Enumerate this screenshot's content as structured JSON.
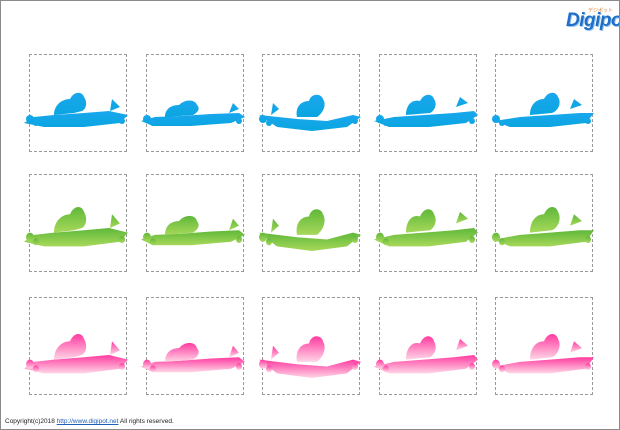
{
  "logo": {
    "brand": "Digipot",
    "tagline": "デジポット"
  },
  "footer": {
    "prefix": "Copyright(c)2018",
    "link": "http://www.digipot.net",
    "suffix": "All rights reserved."
  },
  "rows": [
    {
      "name": "blue",
      "top": "#1aa7ee",
      "bottom": "#0aa5e0"
    },
    {
      "name": "green",
      "top": "#5fb83a",
      "bottom": "#a7d85a"
    },
    {
      "name": "pink",
      "top": "#ff3aa0",
      "bottom": "#ffd6e6"
    }
  ],
  "icons": [
    "motorboat-racer-icon"
  ]
}
